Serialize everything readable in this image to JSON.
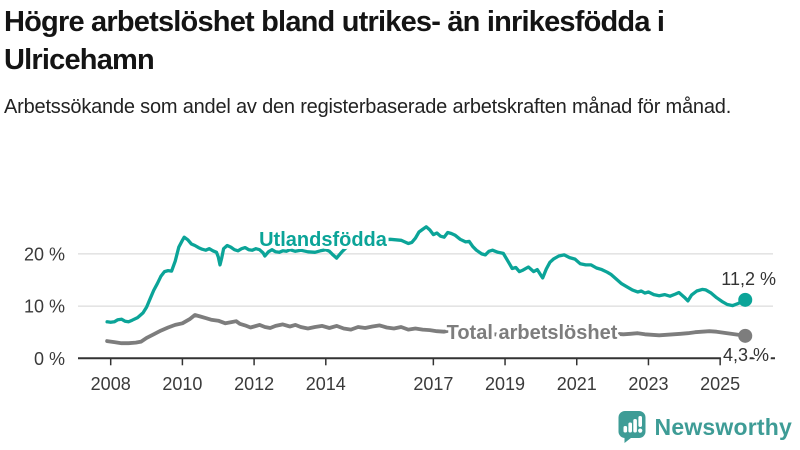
{
  "chart_data": {
    "type": "line",
    "title": "Högre arbetslöshet bland utrikes- än inrikesfödda i Ulricehamn",
    "subtitle": "Arbetssökande som andel av den registerbaserade arbetskraften månad för månad.",
    "x_range": [
      2007.9,
      2025.7
    ],
    "y_range": [
      0,
      31
    ],
    "grid": "horizontal",
    "legend_position": "inline-labels",
    "x_ticks": [
      2008,
      2010,
      2012,
      2014,
      2017,
      2019,
      2021,
      2023,
      2025
    ],
    "x_tick_labels": [
      "2008",
      "2010",
      "2012",
      "2014",
      "2017",
      "2019",
      "2021",
      "2023",
      "2025"
    ],
    "y_ticks": [
      0,
      10,
      20
    ],
    "y_tick_labels": [
      "0 %",
      "10 %",
      "20 %"
    ],
    "series": [
      {
        "name": "Utlandsfödda",
        "color": "#0ba498",
        "end_label": "11,2 %",
        "end_value": 11.2,
        "points": [
          [
            2007.9,
            7.0
          ],
          [
            2008.0,
            6.9
          ],
          [
            2008.1,
            7.0
          ],
          [
            2008.2,
            7.4
          ],
          [
            2008.3,
            7.5
          ],
          [
            2008.4,
            7.1
          ],
          [
            2008.5,
            7.0
          ],
          [
            2008.6,
            7.3
          ],
          [
            2008.75,
            7.8
          ],
          [
            2008.9,
            8.7
          ],
          [
            2009.0,
            9.8
          ],
          [
            2009.1,
            11.4
          ],
          [
            2009.2,
            13.0
          ],
          [
            2009.3,
            14.3
          ],
          [
            2009.4,
            15.7
          ],
          [
            2009.5,
            16.6
          ],
          [
            2009.6,
            16.8
          ],
          [
            2009.7,
            16.7
          ],
          [
            2009.8,
            18.6
          ],
          [
            2009.9,
            21.3
          ],
          [
            2010.0,
            22.6
          ],
          [
            2010.05,
            23.2
          ],
          [
            2010.15,
            22.7
          ],
          [
            2010.25,
            21.9
          ],
          [
            2010.35,
            21.6
          ],
          [
            2010.45,
            21.2
          ],
          [
            2010.55,
            20.9
          ],
          [
            2010.65,
            20.7
          ],
          [
            2010.75,
            21.0
          ],
          [
            2010.85,
            20.6
          ],
          [
            2010.95,
            20.3
          ],
          [
            2011.0,
            19.4
          ],
          [
            2011.05,
            17.9
          ],
          [
            2011.1,
            19.3
          ],
          [
            2011.15,
            21.0
          ],
          [
            2011.25,
            21.6
          ],
          [
            2011.35,
            21.3
          ],
          [
            2011.45,
            20.8
          ],
          [
            2011.55,
            20.6
          ],
          [
            2011.65,
            21.0
          ],
          [
            2011.75,
            21.2
          ],
          [
            2011.85,
            20.8
          ],
          [
            2011.95,
            20.7
          ],
          [
            2012.05,
            21.0
          ],
          [
            2012.15,
            20.8
          ],
          [
            2012.25,
            20.2
          ],
          [
            2012.3,
            19.6
          ],
          [
            2012.4,
            20.4
          ],
          [
            2012.5,
            20.8
          ],
          [
            2012.6,
            20.4
          ],
          [
            2012.7,
            20.3
          ],
          [
            2012.8,
            20.6
          ],
          [
            2012.9,
            20.5
          ],
          [
            2013.0,
            20.8
          ],
          [
            2013.15,
            20.5
          ],
          [
            2013.3,
            20.7
          ],
          [
            2013.5,
            20.4
          ],
          [
            2013.7,
            20.3
          ],
          [
            2013.85,
            20.6
          ],
          [
            2014.0,
            20.8
          ],
          [
            2014.1,
            20.5
          ],
          [
            2014.2,
            19.8
          ],
          [
            2014.3,
            19.2
          ],
          [
            2014.45,
            20.4
          ],
          [
            2014.6,
            21.4
          ],
          [
            2014.75,
            21.9
          ],
          [
            2014.9,
            22.1
          ],
          [
            2015.05,
            21.8
          ],
          [
            2015.2,
            22.2
          ],
          [
            2015.35,
            22.7
          ],
          [
            2015.5,
            22.4
          ],
          [
            2015.65,
            22.7
          ],
          [
            2015.8,
            22.8
          ],
          [
            2015.95,
            22.7
          ],
          [
            2016.1,
            22.6
          ],
          [
            2016.2,
            22.3
          ],
          [
            2016.3,
            22.0
          ],
          [
            2016.4,
            22.2
          ],
          [
            2016.5,
            23.0
          ],
          [
            2016.6,
            24.2
          ],
          [
            2016.7,
            24.7
          ],
          [
            2016.8,
            25.2
          ],
          [
            2016.9,
            24.6
          ],
          [
            2017.0,
            23.7
          ],
          [
            2017.1,
            24.0
          ],
          [
            2017.2,
            23.4
          ],
          [
            2017.3,
            23.2
          ],
          [
            2017.4,
            24.1
          ],
          [
            2017.5,
            23.9
          ],
          [
            2017.6,
            23.6
          ],
          [
            2017.75,
            22.8
          ],
          [
            2017.9,
            22.3
          ],
          [
            2018.0,
            22.4
          ],
          [
            2018.1,
            21.4
          ],
          [
            2018.2,
            20.7
          ],
          [
            2018.35,
            20.0
          ],
          [
            2018.45,
            19.8
          ],
          [
            2018.55,
            20.5
          ],
          [
            2018.65,
            20.7
          ],
          [
            2018.8,
            20.3
          ],
          [
            2018.95,
            20.1
          ],
          [
            2019.1,
            18.4
          ],
          [
            2019.2,
            17.2
          ],
          [
            2019.3,
            17.4
          ],
          [
            2019.4,
            16.6
          ],
          [
            2019.5,
            16.9
          ],
          [
            2019.65,
            17.5
          ],
          [
            2019.8,
            16.6
          ],
          [
            2019.9,
            17.0
          ],
          [
            2020.0,
            15.9
          ],
          [
            2020.05,
            15.4
          ],
          [
            2020.15,
            17.1
          ],
          [
            2020.25,
            18.4
          ],
          [
            2020.35,
            19.0
          ],
          [
            2020.5,
            19.6
          ],
          [
            2020.65,
            19.8
          ],
          [
            2020.8,
            19.3
          ],
          [
            2020.95,
            19.0
          ],
          [
            2021.1,
            18.1
          ],
          [
            2021.25,
            17.9
          ],
          [
            2021.4,
            17.9
          ],
          [
            2021.55,
            17.3
          ],
          [
            2021.7,
            17.0
          ],
          [
            2021.85,
            16.5
          ],
          [
            2021.95,
            16.1
          ],
          [
            2022.1,
            15.2
          ],
          [
            2022.25,
            14.3
          ],
          [
            2022.4,
            13.7
          ],
          [
            2022.55,
            13.1
          ],
          [
            2022.7,
            12.7
          ],
          [
            2022.8,
            12.9
          ],
          [
            2022.9,
            12.5
          ],
          [
            2023.0,
            12.7
          ],
          [
            2023.15,
            12.2
          ],
          [
            2023.3,
            12.0
          ],
          [
            2023.45,
            12.2
          ],
          [
            2023.6,
            11.9
          ],
          [
            2023.75,
            12.3
          ],
          [
            2023.85,
            12.6
          ],
          [
            2024.0,
            11.7
          ],
          [
            2024.1,
            11.0
          ],
          [
            2024.2,
            12.1
          ],
          [
            2024.35,
            12.9
          ],
          [
            2024.5,
            13.2
          ],
          [
            2024.6,
            13.1
          ],
          [
            2024.75,
            12.5
          ],
          [
            2024.9,
            11.6
          ],
          [
            2025.05,
            10.9
          ],
          [
            2025.2,
            10.3
          ],
          [
            2025.35,
            10.1
          ],
          [
            2025.5,
            10.5
          ],
          [
            2025.6,
            10.8
          ],
          [
            2025.7,
            11.2
          ]
        ]
      },
      {
        "name": "Total arbetslöshet",
        "color": "#7d7d7d",
        "end_label": "4,3 %",
        "end_value": 4.3,
        "points": [
          [
            2007.9,
            3.3
          ],
          [
            2008.1,
            3.1
          ],
          [
            2008.3,
            2.9
          ],
          [
            2008.5,
            2.9
          ],
          [
            2008.7,
            3.0
          ],
          [
            2008.85,
            3.2
          ],
          [
            2009.0,
            3.9
          ],
          [
            2009.2,
            4.6
          ],
          [
            2009.4,
            5.3
          ],
          [
            2009.6,
            5.9
          ],
          [
            2009.8,
            6.4
          ],
          [
            2010.0,
            6.7
          ],
          [
            2010.2,
            7.5
          ],
          [
            2010.35,
            8.3
          ],
          [
            2010.5,
            8.0
          ],
          [
            2010.65,
            7.7
          ],
          [
            2010.8,
            7.4
          ],
          [
            2011.0,
            7.2
          ],
          [
            2011.2,
            6.7
          ],
          [
            2011.35,
            6.9
          ],
          [
            2011.5,
            7.1
          ],
          [
            2011.6,
            6.6
          ],
          [
            2011.75,
            6.3
          ],
          [
            2011.9,
            5.9
          ],
          [
            2012.0,
            6.1
          ],
          [
            2012.15,
            6.4
          ],
          [
            2012.3,
            6.0
          ],
          [
            2012.45,
            5.8
          ],
          [
            2012.6,
            6.2
          ],
          [
            2012.8,
            6.5
          ],
          [
            2013.0,
            6.1
          ],
          [
            2013.15,
            6.4
          ],
          [
            2013.3,
            6.0
          ],
          [
            2013.5,
            5.7
          ],
          [
            2013.7,
            6.0
          ],
          [
            2013.9,
            6.2
          ],
          [
            2014.1,
            5.8
          ],
          [
            2014.3,
            6.2
          ],
          [
            2014.5,
            5.7
          ],
          [
            2014.7,
            5.5
          ],
          [
            2014.9,
            6.0
          ],
          [
            2015.1,
            5.8
          ],
          [
            2015.3,
            6.1
          ],
          [
            2015.5,
            6.3
          ],
          [
            2015.7,
            5.9
          ],
          [
            2015.9,
            5.7
          ],
          [
            2016.1,
            6.0
          ],
          [
            2016.3,
            5.5
          ],
          [
            2016.5,
            5.7
          ],
          [
            2016.7,
            5.5
          ],
          [
            2016.9,
            5.4
          ],
          [
            2017.1,
            5.2
          ],
          [
            2017.3,
            5.1
          ],
          [
            2017.5,
            5.4
          ],
          [
            2017.7,
            5.2
          ],
          [
            2017.9,
            4.9
          ],
          [
            2018.1,
            4.8
          ],
          [
            2018.3,
            5.0
          ],
          [
            2018.5,
            4.7
          ],
          [
            2018.7,
            4.6
          ],
          [
            2018.9,
            4.5
          ],
          [
            2019.1,
            4.4
          ],
          [
            2019.3,
            4.5
          ],
          [
            2019.5,
            4.3
          ],
          [
            2019.7,
            4.4
          ],
          [
            2019.9,
            4.3
          ],
          [
            2020.1,
            4.5
          ],
          [
            2020.3,
            5.4
          ],
          [
            2020.5,
            5.9
          ],
          [
            2020.7,
            5.7
          ],
          [
            2020.9,
            5.5
          ],
          [
            2021.1,
            5.4
          ],
          [
            2021.3,
            5.2
          ],
          [
            2021.5,
            5.0
          ],
          [
            2021.7,
            4.9
          ],
          [
            2021.9,
            4.8
          ],
          [
            2022.1,
            4.7
          ],
          [
            2022.3,
            4.6
          ],
          [
            2022.5,
            4.7
          ],
          [
            2022.7,
            4.8
          ],
          [
            2022.9,
            4.6
          ],
          [
            2023.1,
            4.5
          ],
          [
            2023.3,
            4.4
          ],
          [
            2023.5,
            4.5
          ],
          [
            2023.7,
            4.6
          ],
          [
            2023.9,
            4.7
          ],
          [
            2024.1,
            4.8
          ],
          [
            2024.3,
            5.0
          ],
          [
            2024.5,
            5.1
          ],
          [
            2024.7,
            5.2
          ],
          [
            2024.9,
            5.1
          ],
          [
            2025.1,
            4.9
          ],
          [
            2025.3,
            4.7
          ],
          [
            2025.5,
            4.5
          ],
          [
            2025.7,
            4.3
          ]
        ]
      }
    ],
    "colors": {
      "axis": "#333333",
      "grid": "#dcdcdc",
      "tick_text": "#3a3a3a",
      "end_label_text": "#333333"
    }
  },
  "footer": {
    "brand": "Newsworthy",
    "brand_color": "#3e9c96",
    "logo_icon": "bar-chart-speech-bubble"
  }
}
